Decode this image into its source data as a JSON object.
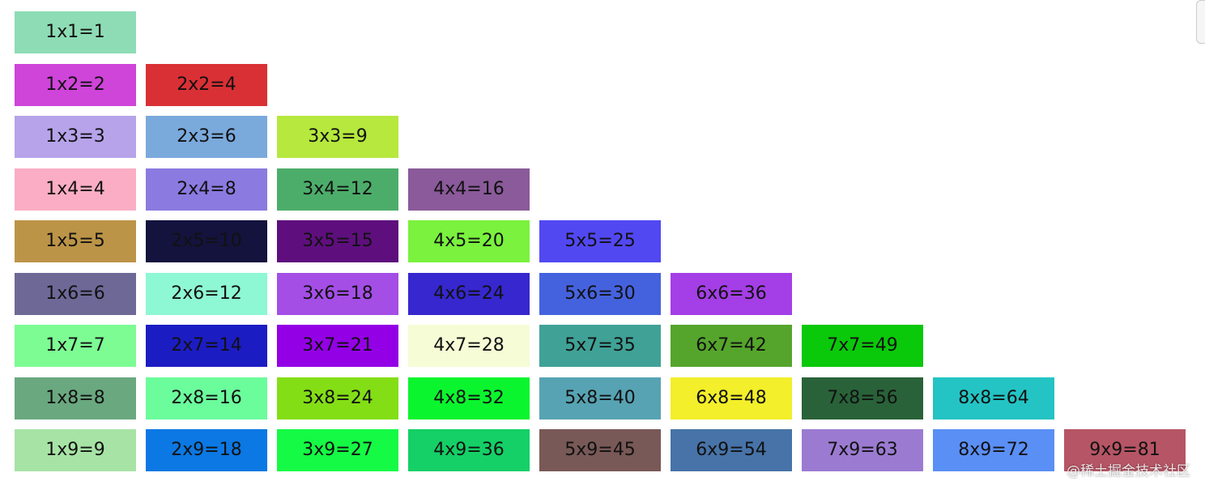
{
  "table": {
    "rows": [
      [
        {
          "label": "1x1=1",
          "color": "#8ddcb5"
        }
      ],
      [
        {
          "label": "1x2=2",
          "color": "#cf44d9"
        },
        {
          "label": "2x2=4",
          "color": "#d93035"
        }
      ],
      [
        {
          "label": "1x3=3",
          "color": "#b7a3ea"
        },
        {
          "label": "2x3=6",
          "color": "#7aa9dc"
        },
        {
          "label": "3x3=9",
          "color": "#b6e83e"
        }
      ],
      [
        {
          "label": "1x4=4",
          "color": "#fbadc5"
        },
        {
          "label": "2x4=8",
          "color": "#8b7ae0"
        },
        {
          "label": "3x4=12",
          "color": "#4cad6a"
        },
        {
          "label": "4x4=16",
          "color": "#8a5a9a"
        }
      ],
      [
        {
          "label": "1x5=5",
          "color": "#bc9447"
        },
        {
          "label": "2x5=10",
          "color": "#14133e"
        },
        {
          "label": "3x5=15",
          "color": "#5e0f7d"
        },
        {
          "label": "4x5=20",
          "color": "#7af23e"
        },
        {
          "label": "5x5=25",
          "color": "#5248f2"
        }
      ],
      [
        {
          "label": "1x6=6",
          "color": "#6e6897"
        },
        {
          "label": "2x6=12",
          "color": "#8ef7d3"
        },
        {
          "label": "3x6=18",
          "color": "#a44ee6"
        },
        {
          "label": "4x6=24",
          "color": "#3627ce"
        },
        {
          "label": "5x6=30",
          "color": "#4562de"
        },
        {
          "label": "6x6=36",
          "color": "#a43ee6"
        }
      ],
      [
        {
          "label": "1x7=7",
          "color": "#7dfc94"
        },
        {
          "label": "2x7=14",
          "color": "#1c1cc3"
        },
        {
          "label": "3x7=21",
          "color": "#9400e6"
        },
        {
          "label": "4x7=28",
          "color": "#f6fcd5"
        },
        {
          "label": "5x7=35",
          "color": "#40a196"
        },
        {
          "label": "6x7=42",
          "color": "#55a52c"
        },
        {
          "label": "7x7=49",
          "color": "#0ac80a"
        }
      ],
      [
        {
          "label": "1x8=8",
          "color": "#6aa880"
        },
        {
          "label": "2x8=16",
          "color": "#6bfc9c"
        },
        {
          "label": "3x8=24",
          "color": "#83de16"
        },
        {
          "label": "4x8=32",
          "color": "#0bf52e"
        },
        {
          "label": "5x8=40",
          "color": "#57a3b3"
        },
        {
          "label": "6x8=48",
          "color": "#f3ef2a"
        },
        {
          "label": "7x8=56",
          "color": "#296239"
        },
        {
          "label": "8x8=64",
          "color": "#24c4c4"
        }
      ],
      [
        {
          "label": "1x9=9",
          "color": "#a7e3a5"
        },
        {
          "label": "2x9=18",
          "color": "#0b78e3"
        },
        {
          "label": "3x9=27",
          "color": "#15fa45"
        },
        {
          "label": "4x9=36",
          "color": "#14d066"
        },
        {
          "label": "5x9=45",
          "color": "#785957"
        },
        {
          "label": "6x9=54",
          "color": "#4773a8"
        },
        {
          "label": "7x9=63",
          "color": "#9b7bd1"
        },
        {
          "label": "8x9=72",
          "color": "#5a8ff5"
        },
        {
          "label": "9x9=81",
          "color": "#b65565"
        }
      ]
    ]
  },
  "watermark": "@稀土掘金技术社区"
}
